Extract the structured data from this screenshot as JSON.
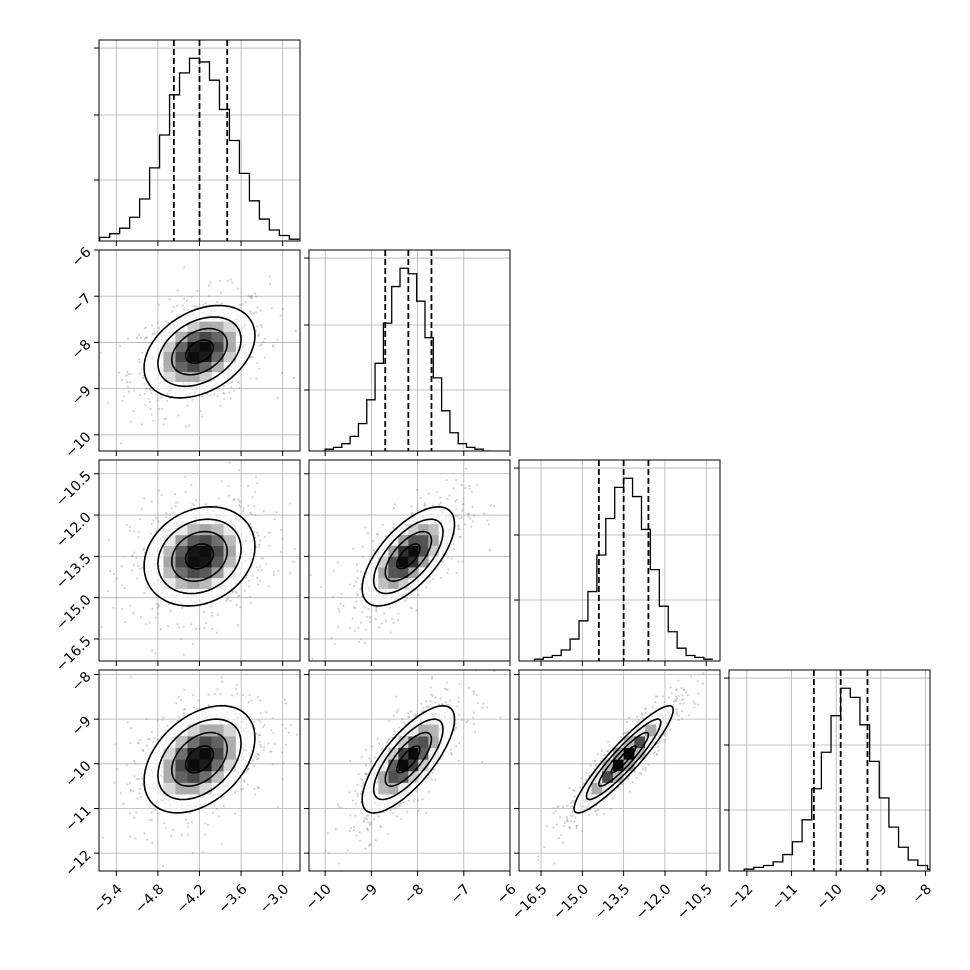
{
  "colors": {
    "background": "#ffffff",
    "axis": "#000000",
    "grid": "#b0b0b0",
    "hist": "#000000",
    "quantile_line": "#000000",
    "scatter": "#9a9a9a",
    "density_ramp": [
      "#ffffff",
      "#000000"
    ]
  },
  "chart_data": {
    "type": "corner",
    "description_of_layout": "4x4 lower-triangular corner plot: 1D histograms on the diagonal, 2D density contour plots below",
    "grid": true,
    "parameters": [
      {
        "index": 0,
        "range": [
          -5.65,
          -2.75
        ],
        "ticks": [
          -5.4,
          -4.8,
          -4.2,
          -3.6,
          -3.0
        ],
        "tick_labels": [
          "−5.4",
          "−4.8",
          "−4.2",
          "−3.6",
          "−3.0"
        ],
        "mean": -4.2,
        "std": 0.4,
        "quantiles": [
          -4.57,
          -4.2,
          -3.8
        ]
      },
      {
        "index": 1,
        "range": [
          -10.35,
          -6.0
        ],
        "ticks": [
          -10,
          -9,
          -8,
          -7,
          -6
        ],
        "tick_labels": [
          "−10",
          "−9",
          "−8",
          "−7",
          "−6"
        ],
        "mean": -8.2,
        "std": 0.5,
        "quantiles": [
          -8.7,
          -8.2,
          -7.7
        ]
      },
      {
        "index": 2,
        "range": [
          -17.3,
          -10.0
        ],
        "ticks": [
          -16.5,
          -15.0,
          -13.5,
          -12.0,
          -10.5
        ],
        "tick_labels": [
          "−16.5",
          "−15.0",
          "−13.5",
          "−12.0",
          "−10.5"
        ],
        "mean": -13.5,
        "std": 0.9,
        "quantiles": [
          -14.4,
          -13.5,
          -12.6
        ]
      },
      {
        "index": 3,
        "range": [
          -12.4,
          -7.9
        ],
        "ticks": [
          -12,
          -11,
          -10,
          -9,
          -8
        ],
        "tick_labels": [
          "−12",
          "−11",
          "−10",
          "−9",
          "−8"
        ],
        "mean": -9.9,
        "std": 0.6,
        "quantiles": [
          -10.5,
          -9.9,
          -9.3
        ]
      }
    ],
    "diagonal_hist_bins": 20,
    "histograms": [
      {
        "param": 0,
        "counts": [
          2,
          4,
          7,
          13,
          23,
          40,
          58,
          80,
          92,
          100,
          98,
          88,
          72,
          55,
          37,
          22,
          12,
          6,
          3,
          1
        ]
      },
      {
        "param": 1,
        "counts": [
          1,
          2,
          4,
          8,
          15,
          28,
          48,
          70,
          90,
          100,
          97,
          82,
          62,
          40,
          22,
          10,
          4,
          2,
          1,
          0
        ]
      },
      {
        "param": 2,
        "counts": [
          1,
          2,
          3,
          6,
          12,
          22,
          38,
          58,
          78,
          95,
          100,
          90,
          72,
          50,
          30,
          16,
          7,
          3,
          2,
          1
        ]
      },
      {
        "param": 3,
        "counts": [
          1,
          2,
          3,
          5,
          9,
          16,
          28,
          45,
          65,
          85,
          100,
          95,
          80,
          60,
          40,
          24,
          13,
          6,
          3,
          1
        ]
      }
    ],
    "pairs": [
      {
        "x_param": 0,
        "y_param": 1,
        "correlation": 0.35
      },
      {
        "x_param": 0,
        "y_param": 2,
        "correlation": 0.2
      },
      {
        "x_param": 1,
        "y_param": 2,
        "correlation": 0.65
      },
      {
        "x_param": 0,
        "y_param": 3,
        "correlation": 0.4
      },
      {
        "x_param": 1,
        "y_param": 3,
        "correlation": 0.75
      },
      {
        "x_param": 2,
        "y_param": 3,
        "correlation": 0.92
      }
    ],
    "contour_levels_sigma": [
      0.5,
      1.0,
      1.5,
      2.0
    ]
  }
}
